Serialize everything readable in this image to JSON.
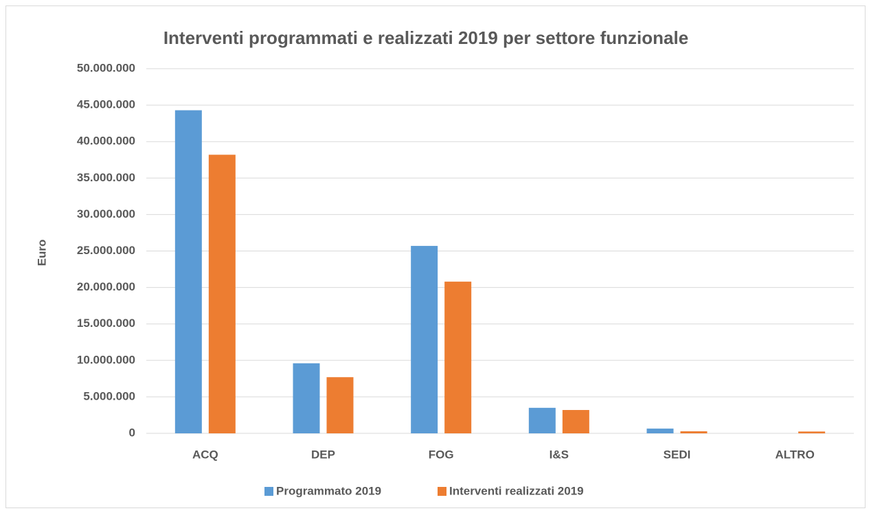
{
  "chart_data": {
    "type": "bar",
    "title": "Interventi programmati e realizzati 2019 per settore funzionale",
    "y_label": "Euro",
    "categories": [
      "ACQ",
      "DEP",
      "FOG",
      "I&S",
      "SEDI",
      "ALTRO"
    ],
    "series": [
      {
        "name": "Programmato 2019",
        "color": "#5b9bd5",
        "values": [
          44300000,
          9600000,
          25700000,
          3500000,
          650000,
          0
        ]
      },
      {
        "name": "Interventi realizzati 2019",
        "color": "#ed7d31",
        "values": [
          38200000,
          7700000,
          20800000,
          3200000,
          280000,
          250000
        ]
      }
    ],
    "ylim": [
      0,
      50000000
    ],
    "yticks": [
      0,
      {
        "value": 5000000,
        "label": "5.000.000"
      },
      {
        "value": 10000000,
        "label": "10.000.000"
      },
      {
        "value": 15000000,
        "label": "15.000.000"
      },
      {
        "value": 20000000,
        "label": "20.000.000"
      },
      {
        "value": 25000000,
        "label": "25.000.000"
      },
      {
        "value": 30000000,
        "label": "30.000.000"
      },
      {
        "value": 35000000,
        "label": "35.000.000"
      },
      {
        "value": 40000000,
        "label": "40.000.000"
      },
      {
        "value": 45000000,
        "label": "45.000.000"
      },
      {
        "value": 50000000,
        "label": "50.000.000"
      }
    ],
    "grid": true,
    "legend": "bottom"
  }
}
